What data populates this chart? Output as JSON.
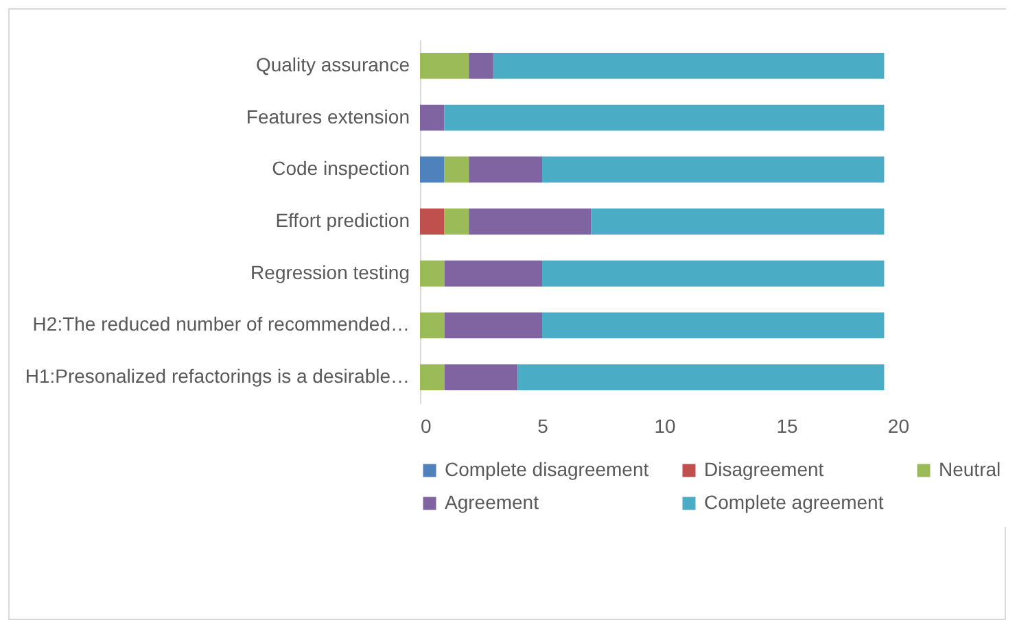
{
  "chart_data": {
    "type": "bar",
    "orientation": "horizontal",
    "stacked": true,
    "categories": [
      "Quality assurance",
      "Features extension",
      "Code inspection",
      "Effort prediction",
      "Regression testing",
      "H2:The reduced number of recommended…",
      "H1:Presonalized refactorings is a desirable…"
    ],
    "series": [
      {
        "name": "Complete disagreement",
        "color": "#4f81bd",
        "values": [
          0,
          0,
          1,
          0,
          0,
          0,
          0
        ]
      },
      {
        "name": "Disagreement",
        "color": "#c0504d",
        "values": [
          0,
          0,
          0,
          1,
          0,
          0,
          0
        ]
      },
      {
        "name": "Neutral",
        "color": "#9bbb59",
        "values": [
          2,
          0,
          1,
          1,
          1,
          1,
          1
        ]
      },
      {
        "name": "Agreement",
        "color": "#8064a2",
        "values": [
          1,
          1,
          3,
          5,
          4,
          4,
          3
        ]
      },
      {
        "name": "Complete agreement",
        "color": "#4bacc6",
        "values": [
          16,
          18,
          14,
          12,
          14,
          14,
          15
        ]
      }
    ],
    "xlim": [
      0,
      20
    ],
    "xticks": [
      0,
      5,
      10,
      15,
      20
    ],
    "grid": false,
    "legend": "bottom"
  }
}
